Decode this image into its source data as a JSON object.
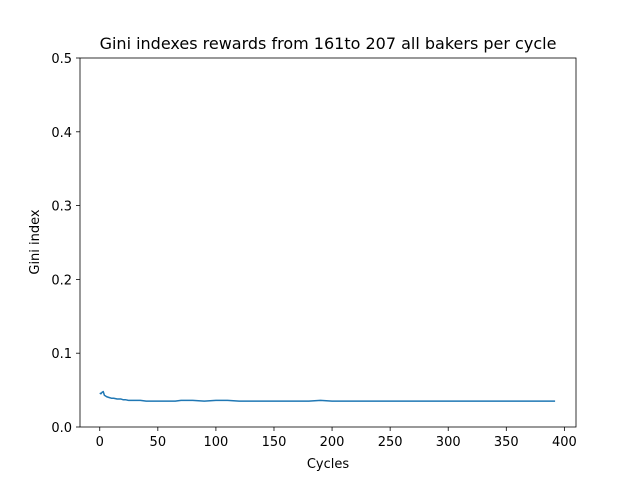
{
  "chart_data": {
    "type": "line",
    "title": "Gini indexes rewards from 161to 207 all bakers per cycle",
    "xlabel": "Cycles",
    "ylabel": "Gini index",
    "xlim": [
      -17,
      410
    ],
    "ylim": [
      0,
      0.5
    ],
    "xticks": [
      "0",
      "50",
      "100",
      "150",
      "200",
      "250",
      "300",
      "350",
      "400"
    ],
    "yticks": [
      "0.0",
      "0.1",
      "0.2",
      "0.3",
      "0.4",
      "0.5"
    ],
    "grid": false,
    "series": [
      {
        "color": "#1f77b4",
        "x": [
          0,
          1,
          2,
          3,
          4,
          5,
          6,
          8,
          10,
          12,
          15,
          18,
          20,
          22,
          25,
          28,
          30,
          35,
          40,
          45,
          50,
          55,
          60,
          65,
          70,
          80,
          90,
          100,
          110,
          120,
          130,
          140,
          150,
          160,
          170,
          180,
          190,
          200,
          220,
          240,
          260,
          280,
          300,
          320,
          340,
          360,
          380,
          392
        ],
        "y": [
          0.046,
          0.045,
          0.047,
          0.048,
          0.043,
          0.042,
          0.041,
          0.04,
          0.039,
          0.039,
          0.038,
          0.038,
          0.037,
          0.037,
          0.036,
          0.036,
          0.036,
          0.036,
          0.035,
          0.035,
          0.035,
          0.035,
          0.035,
          0.035,
          0.036,
          0.036,
          0.035,
          0.036,
          0.036,
          0.035,
          0.035,
          0.035,
          0.035,
          0.035,
          0.035,
          0.035,
          0.036,
          0.035,
          0.035,
          0.035,
          0.035,
          0.035,
          0.035,
          0.035,
          0.035,
          0.035,
          0.035,
          0.035
        ]
      }
    ]
  }
}
